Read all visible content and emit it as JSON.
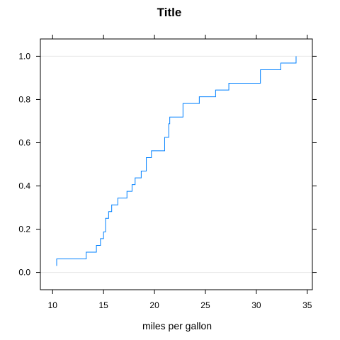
{
  "chart_data": {
    "type": "line",
    "subtype": "ecdf-step",
    "title": "Title",
    "xlabel": "miles per gallon",
    "ylabel": "",
    "xlim": [
      8.8,
      35.5
    ],
    "ylim": [
      -0.08,
      1.08
    ],
    "xticks": [
      10,
      15,
      20,
      25,
      30,
      35
    ],
    "yticks": [
      0.0,
      0.2,
      0.4,
      0.6,
      0.8,
      1.0
    ],
    "xtick_labels": [
      "10",
      "15",
      "20",
      "25",
      "30",
      "35"
    ],
    "ytick_labels": [
      "0.0",
      "0.2",
      "0.4",
      "0.6",
      "0.8",
      "1.0"
    ],
    "reference_lines_y": [
      0,
      1
    ],
    "grid": false,
    "series": [
      {
        "x": [
          10.4,
          13.3,
          14.3,
          14.7,
          15.0,
          15.2,
          15.5,
          15.8,
          16.4,
          17.3,
          17.8,
          18.1,
          18.7,
          19.2,
          19.7,
          21.0,
          21.4,
          21.5,
          22.8,
          24.4,
          26.0,
          27.3,
          30.4,
          32.4,
          33.9
        ],
        "y": [
          0.0625,
          0.09375,
          0.125,
          0.15625,
          0.1875,
          0.25,
          0.28125,
          0.3125,
          0.34375,
          0.375,
          0.40625,
          0.4375,
          0.46875,
          0.53125,
          0.5625,
          0.625,
          0.6875,
          0.71875,
          0.78125,
          0.8125,
          0.84375,
          0.875,
          0.9375,
          0.96875,
          1.0
        ]
      }
    ],
    "colors": {
      "line": "#0080ff",
      "refline": "#e6e6e6",
      "frame": "#000000"
    }
  }
}
